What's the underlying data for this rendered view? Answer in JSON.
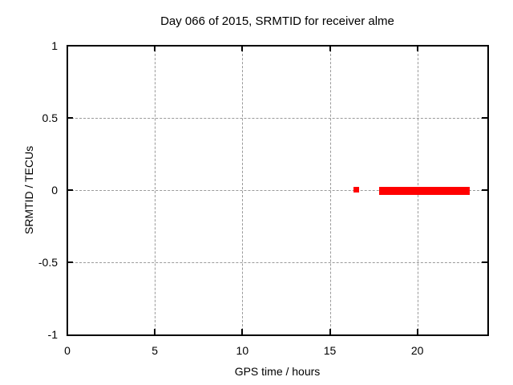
{
  "chart_data": {
    "type": "scatter",
    "title": "Day 066 of 2015, SRMTID for receiver alme",
    "xlabel": "GPS time / hours",
    "ylabel": "SRMTID / TECUs",
    "xlim": [
      0,
      24
    ],
    "ylim": [
      -1,
      1
    ],
    "xticks": [
      {
        "v": 0,
        "label": "0"
      },
      {
        "v": 5,
        "label": "5"
      },
      {
        "v": 10,
        "label": "10"
      },
      {
        "v": 15,
        "label": "15"
      },
      {
        "v": 20,
        "label": "20"
      }
    ],
    "yticks": [
      {
        "v": -1,
        "label": "-1"
      },
      {
        "v": -0.5,
        "label": "-0.5"
      },
      {
        "v": 0,
        "label": "0"
      },
      {
        "v": 0.5,
        "label": "0.5"
      },
      {
        "v": 1,
        "label": "1"
      }
    ],
    "grid": true,
    "grid_color": "#9a9a9a",
    "axis_color": "#000000",
    "background_color": "#ffffff",
    "legend": "none",
    "series": [
      {
        "name": "SRMTID",
        "color": "#ff0000",
        "marker": "filled-square",
        "points": [
          {
            "x": 16.5,
            "y": 0
          }
        ],
        "segments": [
          {
            "x0": 17.8,
            "x1": 23.0,
            "y": 0,
            "y_spread": 0.03,
            "note": "dense run of points at y≈0"
          }
        ]
      }
    ]
  }
}
